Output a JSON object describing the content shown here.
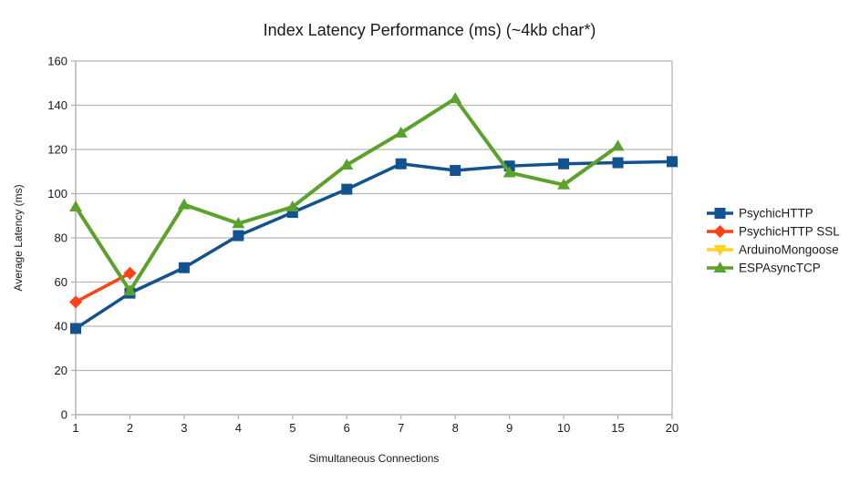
{
  "chart_data": {
    "type": "line",
    "title": "Index Latency Performance (ms) (~4kb char*)",
    "xlabel": "Simultaneous Connections",
    "ylabel": "Average Latency (ms)",
    "categories": [
      "1",
      "2",
      "3",
      "4",
      "5",
      "6",
      "7",
      "8",
      "9",
      "10",
      "15",
      "20"
    ],
    "ylim": [
      0,
      160
    ],
    "yticks": [
      0,
      20,
      40,
      60,
      80,
      100,
      120,
      140,
      160
    ],
    "grid": true,
    "legend_position": "right",
    "series": [
      {
        "name": "PsychicHTTP",
        "color": "#12538f",
        "marker": "square",
        "values": [
          39,
          55,
          66.5,
          81,
          91.5,
          102,
          113.5,
          110.5,
          112.5,
          113.5,
          114,
          114.5
        ]
      },
      {
        "name": "PsychicHTTP SSL",
        "color": "#ff4214",
        "marker": "diamond",
        "values": [
          51,
          64,
          null,
          null,
          null,
          null,
          null,
          null,
          null,
          null,
          null,
          null
        ]
      },
      {
        "name": "ArduinoMongoose",
        "color": "#ffd320",
        "marker": "triangle-down",
        "values": [
          null,
          null,
          null,
          null,
          null,
          null,
          null,
          null,
          null,
          null,
          null,
          null
        ]
      },
      {
        "name": "ESPAsyncTCP",
        "color": "#5ba22c",
        "marker": "triangle-up",
        "values": [
          94,
          56,
          95,
          86.5,
          94,
          113,
          127.5,
          143,
          109.5,
          104,
          121.5,
          null
        ]
      }
    ],
    "style": {
      "grid_color": "#b8b8b8",
      "axis_color": "#b0b0b0",
      "background": "#ffffff"
    }
  }
}
